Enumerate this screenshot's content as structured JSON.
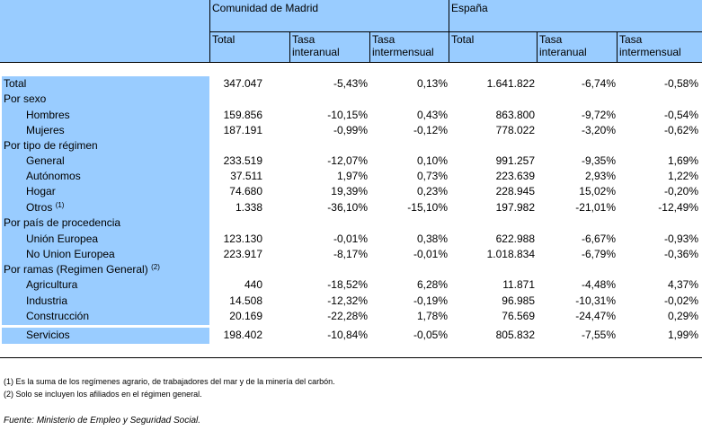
{
  "header": {
    "group1": "Comunidad de Madrid",
    "group2": "España",
    "cols": [
      {
        "l1": "Total",
        "l2": ""
      },
      {
        "l1": "Tasa",
        "l2": "interanual"
      },
      {
        "l1": "Tasa",
        "l2": "intermensual"
      },
      {
        "l1": "Total",
        "l2": ""
      },
      {
        "l1": "Tasa",
        "l2": "interanual"
      },
      {
        "l1": "Tasa",
        "l2": "intermensual"
      }
    ]
  },
  "rows": [
    {
      "label": "Total",
      "sup": "",
      "indent": false,
      "v": [
        "347.047",
        "-5,43%",
        "0,13%",
        "1.641.822",
        "-6,74%",
        "-0,58%"
      ]
    },
    {
      "label": "Por sexo",
      "sup": "",
      "indent": false,
      "v": [
        "",
        "",
        "",
        "",
        "",
        ""
      ]
    },
    {
      "label": "Hombres",
      "sup": "",
      "indent": true,
      "v": [
        "159.856",
        "-10,15%",
        "0,43%",
        "863.800",
        "-9,72%",
        "-0,54%"
      ]
    },
    {
      "label": "Mujeres",
      "sup": "",
      "indent": true,
      "v": [
        "187.191",
        "-0,99%",
        "-0,12%",
        "778.022",
        "-3,20%",
        "-0,62%"
      ]
    },
    {
      "label": "Por tipo de régimen",
      "sup": "",
      "indent": false,
      "v": [
        "",
        "",
        "",
        "",
        "",
        ""
      ]
    },
    {
      "label": "General",
      "sup": "",
      "indent": true,
      "v": [
        "233.519",
        "-12,07%",
        "0,10%",
        "991.257",
        "-9,35%",
        "1,69%"
      ]
    },
    {
      "label": "Autónomos",
      "sup": "",
      "indent": true,
      "v": [
        "37.511",
        "1,97%",
        "0,73%",
        "223.639",
        "2,93%",
        "1,22%"
      ]
    },
    {
      "label": "Hogar",
      "sup": "",
      "indent": true,
      "v": [
        "74.680",
        "19,39%",
        "0,23%",
        "228.945",
        "15,02%",
        "-0,20%"
      ]
    },
    {
      "label": "Otros",
      "sup": "(1)",
      "indent": true,
      "v": [
        "1.338",
        "-36,10%",
        "-15,10%",
        "197.982",
        "-21,01%",
        "-12,49%"
      ]
    },
    {
      "label": "Por país de procedencia",
      "sup": "",
      "indent": false,
      "v": [
        "",
        "",
        "",
        "",
        "",
        ""
      ]
    },
    {
      "label": "Unión Europea",
      "sup": "",
      "indent": true,
      "v": [
        "123.130",
        "-0,01%",
        "0,38%",
        "622.988",
        "-6,67%",
        "-0,93%"
      ]
    },
    {
      "label": "No Union Europea",
      "sup": "",
      "indent": true,
      "v": [
        "223.917",
        "-8,17%",
        "-0,01%",
        "1.018.834",
        "-6,79%",
        "-0,36%"
      ]
    },
    {
      "label": "Por ramas (Regimen General)",
      "sup": "(2)",
      "indent": false,
      "v": [
        "",
        "",
        "",
        "",
        "",
        ""
      ]
    },
    {
      "label": "Agricultura",
      "sup": "",
      "indent": true,
      "v": [
        "440",
        "-18,52%",
        "6,28%",
        "11.871",
        "-4,48%",
        "4,37%"
      ]
    },
    {
      "label": "Industria",
      "sup": "",
      "indent": true,
      "v": [
        "14.508",
        "-12,32%",
        "-0,19%",
        "96.985",
        "-10,31%",
        "-0,02%"
      ]
    },
    {
      "label": "Construcción",
      "sup": "",
      "indent": true,
      "v": [
        "20.169",
        "-22,28%",
        "1,78%",
        "76.569",
        "-24,47%",
        "0,29%"
      ]
    },
    {
      "label": "Servicios",
      "sup": "",
      "indent": true,
      "v": [
        "198.402",
        "-10,84%",
        "-0,05%",
        "805.832",
        "-7,55%",
        "1,99%"
      ]
    }
  ],
  "notes": [
    "(1) Es la suma de los regímenes  agrario, de trabajadores del mar y de la minería del carbón.",
    "(2) Solo se incluyen los afiliados en el régimen general."
  ],
  "source": "Fuente: Ministerio de Empleo y Seguridad Social.",
  "colors": {
    "header_bg": "#99ccff",
    "label_bg": "#99ccff"
  }
}
